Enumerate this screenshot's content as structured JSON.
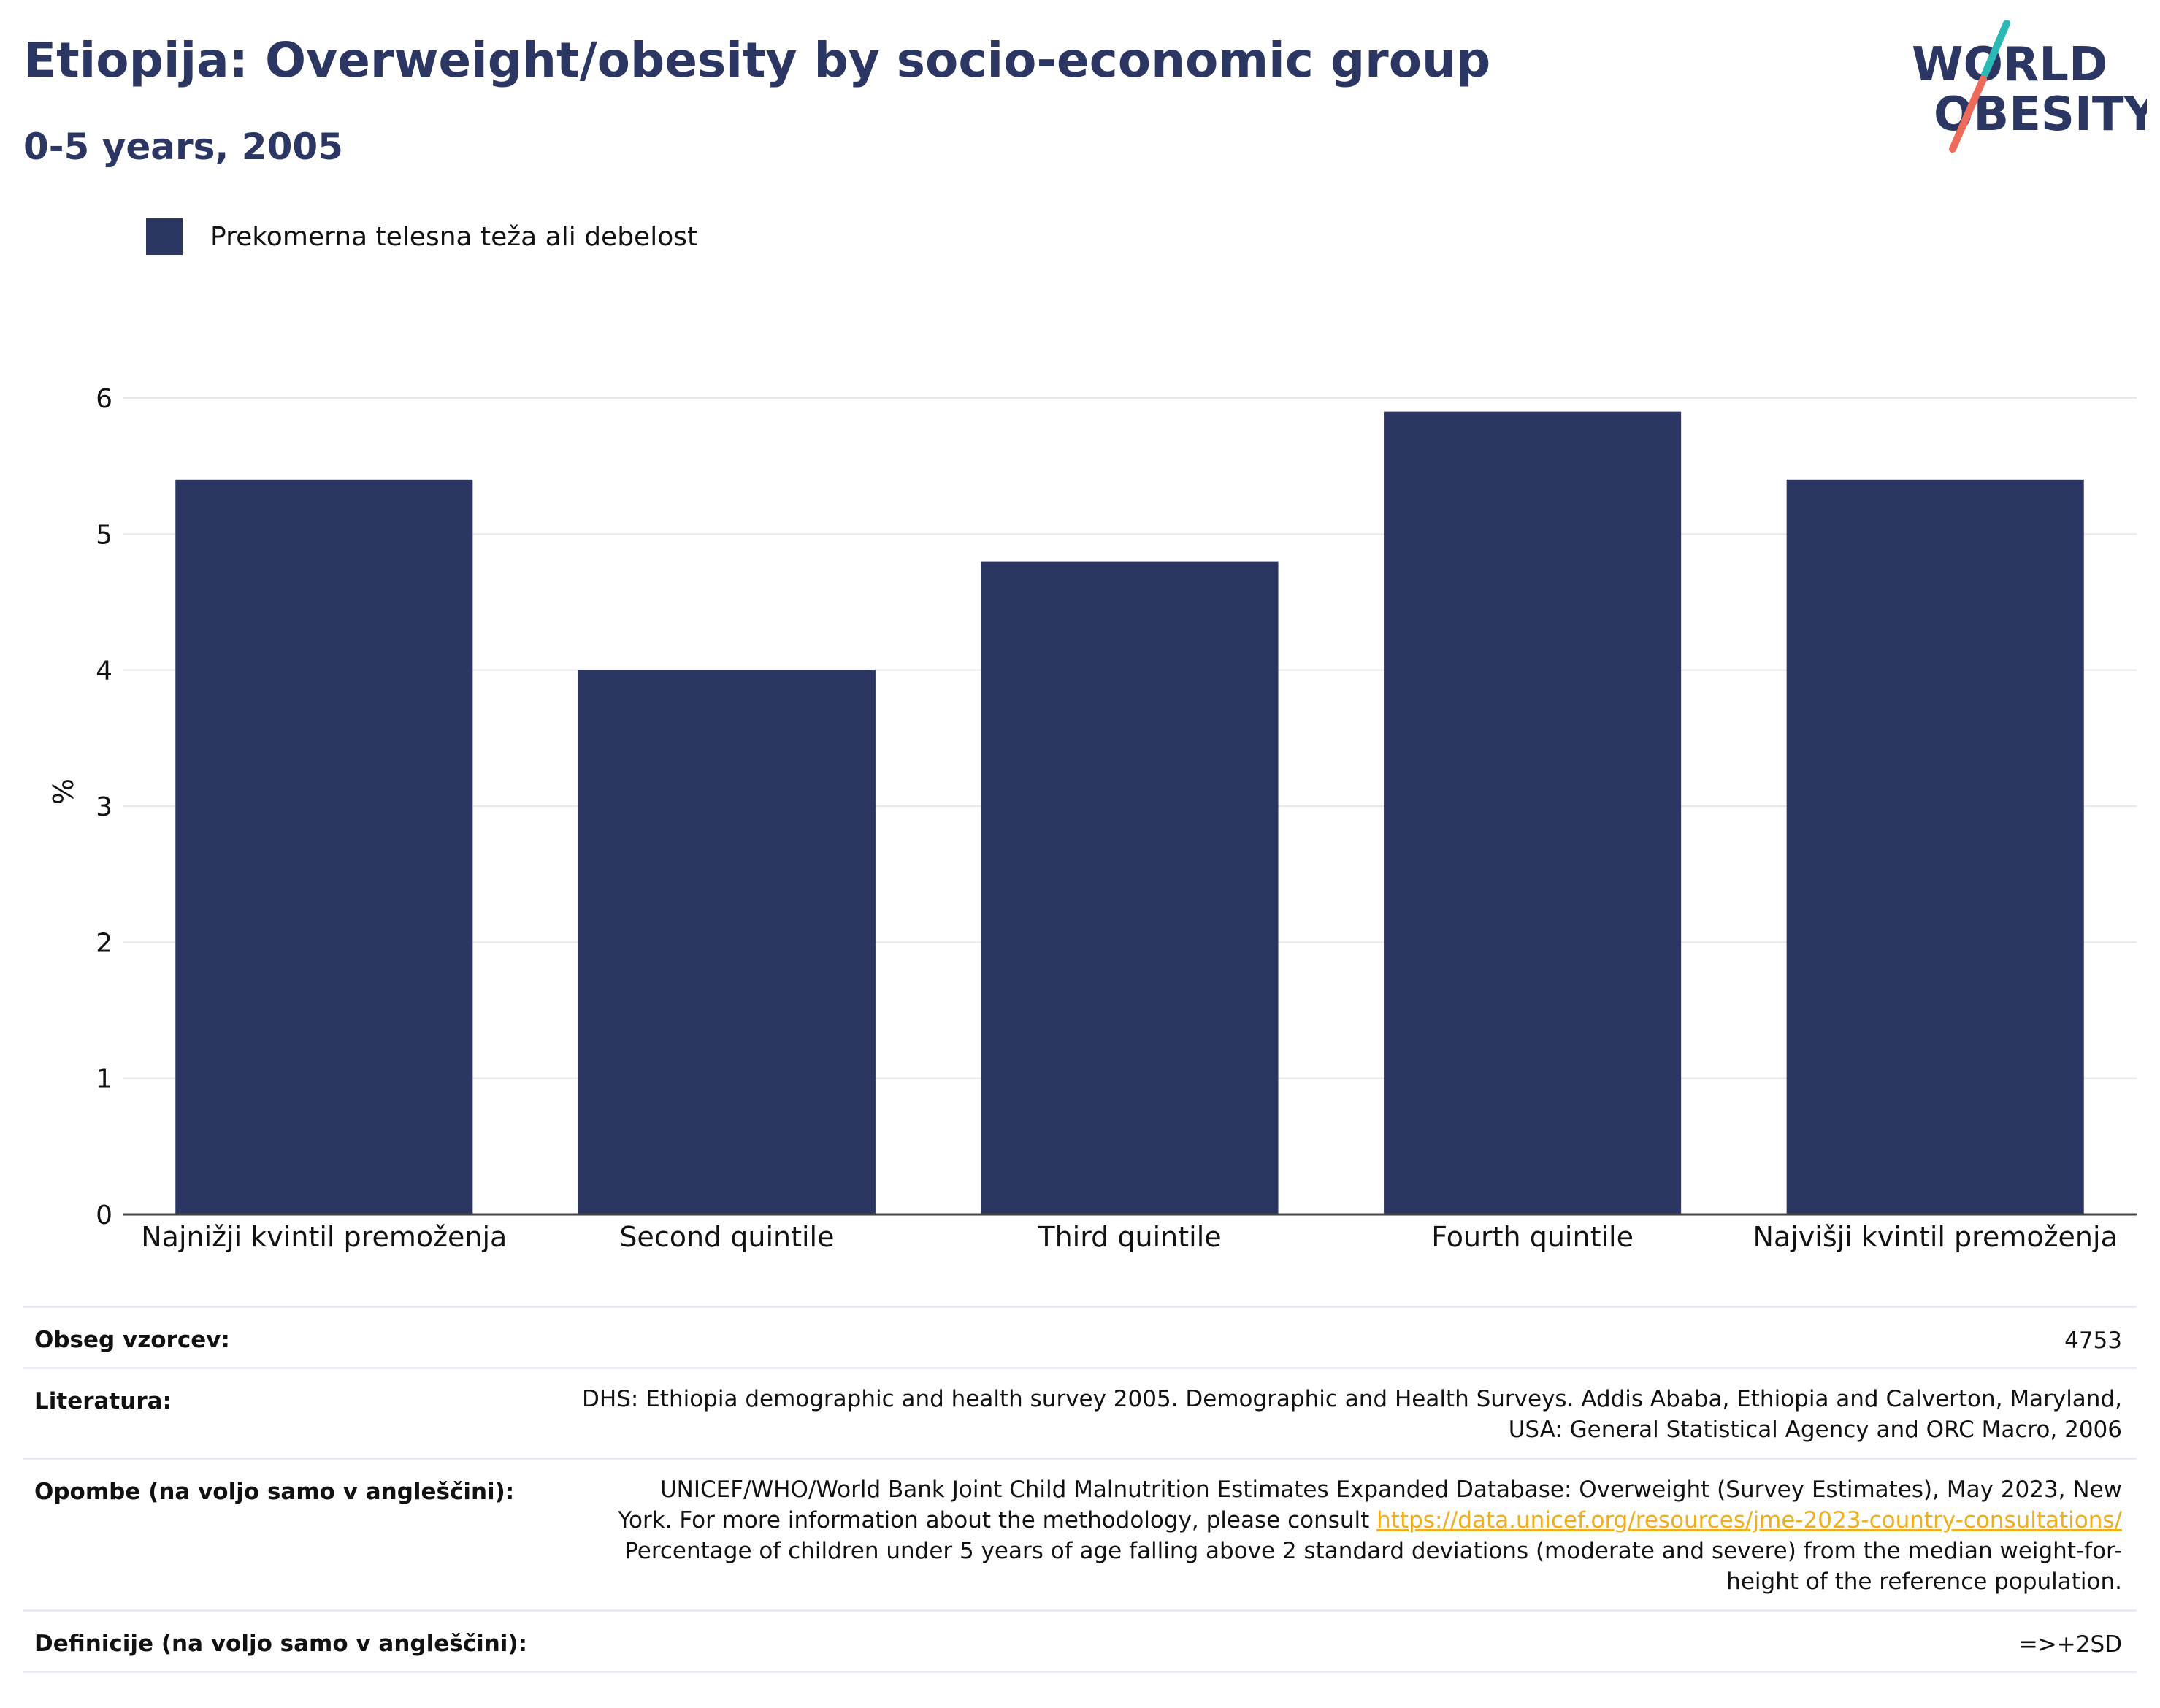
{
  "header": {
    "title": "Etiopija: Overweight/obesity by socio-economic group",
    "subtitle": "0-5 years, 2005"
  },
  "logo": {
    "line1": "WORLD",
    "line2": "OBESITY",
    "accent_teal": "#2bb9b5",
    "accent_coral": "#ee6a5b",
    "text_color": "#2b3663"
  },
  "legend": {
    "label": "Prekomerna telesna teža ali debelost",
    "color": "#2b3663"
  },
  "chart_data": {
    "type": "bar",
    "categories": [
      "Najnižji kvintil premoženja",
      "Second quintile",
      "Third quintile",
      "Fourth quintile",
      "Najvišji kvintil premoženja"
    ],
    "series": [
      {
        "name": "Prekomerna telesna teža ali debelost",
        "values": [
          5.4,
          4.0,
          4.8,
          5.9,
          5.4
        ],
        "color": "#2b3663"
      }
    ],
    "ylabel": "%",
    "xlabel": "",
    "ylim": [
      0,
      6
    ],
    "yticks": [
      "0",
      "1",
      "2",
      "3",
      "4",
      "5",
      "6"
    ],
    "grid": true,
    "legend_position": "top-left"
  },
  "meta": {
    "sample_label": "Obseg vzorcev:",
    "sample_value": "4753",
    "literature_label": "Literatura:",
    "literature_line1": "DHS: Ethiopia demographic and health survey 2005. Demographic and Health Surveys. Addis Ababa, Ethiopia and Calverton, Maryland,",
    "literature_line2": "USA: General Statistical Agency and ORC Macro, 2006",
    "notes_label": "Opombe (na voljo samo v angleščini):",
    "notes_line1": "UNICEF/WHO/World Bank Joint Child Malnutrition Estimates Expanded Database: Overweight (Survey Estimates), May 2023, New",
    "notes_line2_prefix": "York. For more information about the methodology, please consult ",
    "notes_link": "https://data.unicef.org/resources/jme-2023-country-consultations/",
    "notes_line3": "Percentage of children under 5 years of age falling above 2 standard deviations (moderate and severe) from the median weight-for-",
    "notes_line4": "height of the reference population.",
    "definitions_label": "Definicije (na voljo samo v angleščini):",
    "definitions_value": "=>+2SD"
  }
}
